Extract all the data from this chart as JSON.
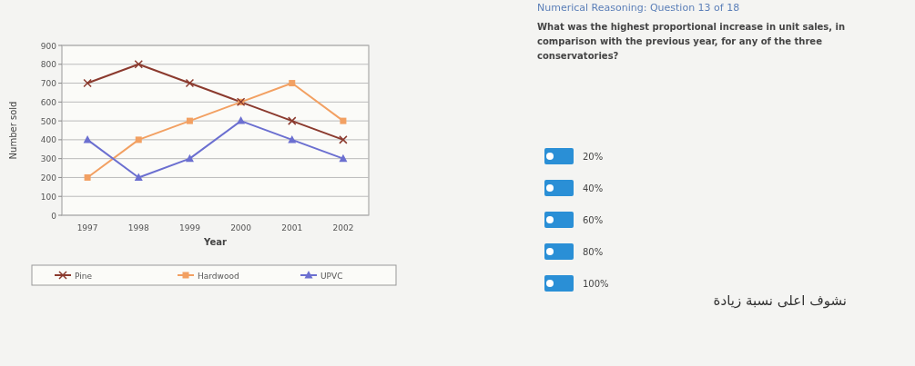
{
  "chart_data": {
    "type": "line",
    "xlabel": "Year",
    "ylabel": "Number sold",
    "categories": [
      "1997",
      "1998",
      "1999",
      "2000",
      "2001",
      "2002"
    ],
    "series": [
      {
        "name": "Pine",
        "color": "#8b3a2e",
        "marker": "cross",
        "values": [
          700,
          800,
          700,
          600,
          500,
          400
        ]
      },
      {
        "name": "Hardwood",
        "color": "#f2a062",
        "marker": "square",
        "values": [
          200,
          400,
          500,
          600,
          700,
          500
        ]
      },
      {
        "name": "UPVC",
        "color": "#6b6fd0",
        "marker": "triangle",
        "values": [
          400,
          200,
          300,
          500,
          400,
          300
        ]
      }
    ],
    "ylim": [
      0,
      900
    ],
    "yticks": [
      0,
      100,
      200,
      300,
      400,
      500,
      600,
      700,
      800,
      900
    ],
    "grid": "y",
    "legend": "bottom",
    "annotations": [
      "Numerical Reasoning: Question 13 of 18",
      "What was the highest proportional increase in unit sales, in comparison with the previous year, for any of the three conservatories?",
      "20%",
      "40%",
      "60%",
      "80%",
      "100%",
      "نشوف اعلى نسبة زيادة"
    ]
  }
}
